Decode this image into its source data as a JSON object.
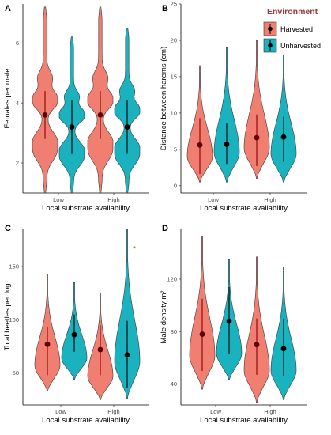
{
  "legend": {
    "title": "Environment",
    "title_color": "#9b3a3a",
    "entries": [
      {
        "label": "Harvested",
        "color": "#f07f72"
      },
      {
        "label": "Unharvested",
        "color": "#1bb2c0"
      }
    ]
  },
  "chart_data": [
    {
      "panel": "A",
      "type": "violin",
      "xlabel": "Local substrate availability",
      "ylabel": "Females per male",
      "categories": [
        "Low",
        "High"
      ],
      "ylim": [
        1,
        7.3
      ],
      "yticks": [
        2,
        4,
        6
      ],
      "legend_shown": false,
      "series": [
        {
          "name": "Harvested",
          "color": "#f07f72",
          "points": [
            {
              "x": "Low",
              "mean": 3.6,
              "lo": 2.8,
              "hi": 4.4
            },
            {
              "x": "High",
              "mean": 3.6,
              "lo": 2.8,
              "hi": 4.4
            }
          ],
          "range": [
            [
              1,
              7.2
            ],
            [
              1,
              7.2
            ]
          ]
        },
        {
          "name": "Unharvested",
          "color": "#1bb2c0",
          "points": [
            {
              "x": "Low",
              "mean": 3.2,
              "lo": 2.3,
              "hi": 4.1
            },
            {
              "x": "High",
              "mean": 3.2,
              "lo": 2.3,
              "hi": 4.1
            }
          ],
          "range": [
            [
              1,
              6.2
            ],
            [
              1,
              6.5
            ]
          ]
        }
      ]
    },
    {
      "panel": "B",
      "type": "violin",
      "xlabel": "Local substrate availability",
      "ylabel": "Distance between harems (cm)",
      "categories": [
        "Low",
        "High"
      ],
      "ylim": [
        -1,
        25
      ],
      "yticks": [
        0,
        5,
        10,
        15,
        20,
        25
      ],
      "legend_shown": true,
      "series": [
        {
          "name": "Harvested",
          "color": "#f07f72",
          "points": [
            {
              "x": "Low",
              "mean": 5.6,
              "lo": 1.6,
              "hi": 9.3
            },
            {
              "x": "High",
              "mean": 6.6,
              "lo": 2.7,
              "hi": 9.8
            }
          ],
          "range": [
            [
              0.5,
              16.5
            ],
            [
              1,
              20
            ]
          ]
        },
        {
          "name": "Unharvested",
          "color": "#1bb2c0",
          "points": [
            {
              "x": "Low",
              "mean": 5.7,
              "lo": 3.0,
              "hi": 8.6
            },
            {
              "x": "High",
              "mean": 6.7,
              "lo": 3.3,
              "hi": 9.5
            }
          ],
          "range": [
            [
              0.5,
              19
            ],
            [
              0.5,
              18
            ]
          ]
        }
      ]
    },
    {
      "panel": "C",
      "type": "violin",
      "xlabel": "Local substrate availability",
      "ylabel": "Total beetles per log",
      "categories": [
        "Low",
        "High"
      ],
      "ylim": [
        20,
        185
      ],
      "yticks": [
        50,
        100,
        150
      ],
      "legend_shown": false,
      "outliers": [
        {
          "series": "Unharvested",
          "x": "High",
          "y": 168
        }
      ],
      "series": [
        {
          "name": "Harvested",
          "color": "#f07f72",
          "points": [
            {
              "x": "Low",
              "mean": 77,
              "lo": 48,
              "hi": 93
            },
            {
              "x": "High",
              "mean": 72,
              "lo": 48,
              "hi": 95
            }
          ],
          "range": [
            [
              33,
              143
            ],
            [
              25,
              125
            ]
          ]
        },
        {
          "name": "Unharvested",
          "color": "#1bb2c0",
          "points": [
            {
              "x": "Low",
              "mean": 86,
              "lo": 70,
              "hi": 105
            },
            {
              "x": "High",
              "mean": 67,
              "lo": 36,
              "hi": 99
            }
          ],
          "range": [
            [
              44,
              135
            ],
            [
              26,
              185
            ]
          ]
        }
      ]
    },
    {
      "panel": "D",
      "type": "violin",
      "xlabel": "Local substrate availability",
      "ylabel": "Male density m²",
      "categories": [
        "Low",
        "High"
      ],
      "ylim": [
        24,
        158
      ],
      "yticks": [
        40,
        80,
        120
      ],
      "legend_shown": false,
      "series": [
        {
          "name": "Harvested",
          "color": "#f07f72",
          "points": [
            {
              "x": "Low",
              "mean": 78,
              "lo": 50,
              "hi": 105
            },
            {
              "x": "High",
              "mean": 70,
              "lo": 47,
              "hi": 90
            }
          ],
          "range": [
            [
              36,
              153
            ],
            [
              26,
              137
            ]
          ]
        },
        {
          "name": "Unharvested",
          "color": "#1bb2c0",
          "points": [
            {
              "x": "Low",
              "mean": 88,
              "lo": 63,
              "hi": 114
            },
            {
              "x": "High",
              "mean": 67,
              "lo": 46,
              "hi": 90
            }
          ],
          "range": [
            [
              43,
              135
            ],
            [
              28,
              129
            ]
          ]
        }
      ]
    }
  ]
}
